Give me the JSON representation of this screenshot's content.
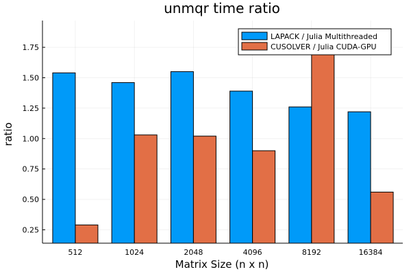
{
  "chart_data": {
    "type": "bar",
    "title": "unmqr time ratio",
    "xlabel": "Matrix Size (n x n)",
    "ylabel": "ratio",
    "categories": [
      "512",
      "1024",
      "2048",
      "4096",
      "8192",
      "16384"
    ],
    "series": [
      {
        "name": "LAPACK / Julia Multithreaded",
        "color": "#009af9",
        "values": [
          1.54,
          1.46,
          1.55,
          1.39,
          1.26,
          1.22
        ]
      },
      {
        "name": "CUSOLVER / Julia  CUDA-GPU",
        "color": "#e26f46",
        "values": [
          0.29,
          1.03,
          1.02,
          0.9,
          1.7,
          0.56
        ]
      }
    ],
    "ylim": [
      0.14,
      1.97
    ],
    "yticks": [
      0.25,
      0.5,
      0.75,
      1.0,
      1.25,
      1.5,
      1.75
    ],
    "ytick_labels": [
      "0.25",
      "0.50",
      "0.75",
      "1.00",
      "1.25",
      "1.50",
      "1.75"
    ],
    "grid": true,
    "legend_position": "top-right"
  }
}
